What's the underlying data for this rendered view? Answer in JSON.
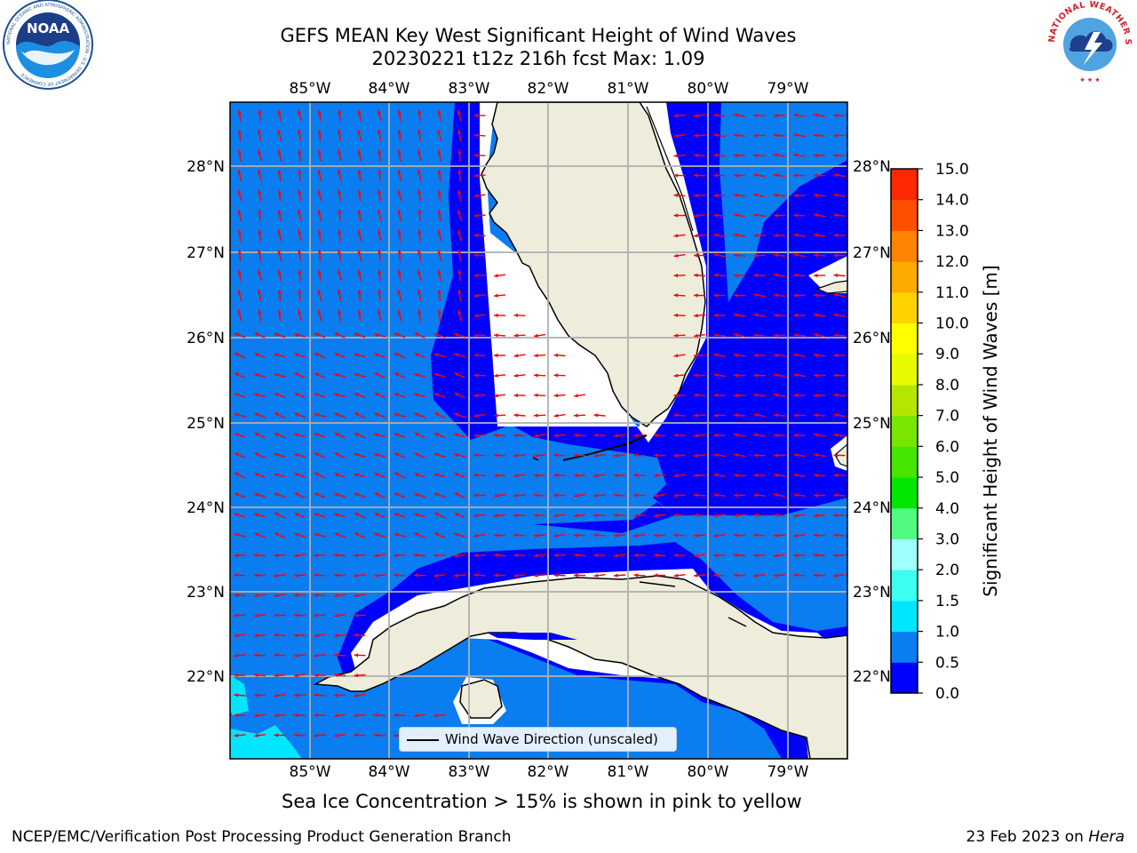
{
  "title": {
    "line1": "GEFS MEAN Key West Significant Height of Wind Waves",
    "line2": "20230221 t12z 216h fcst   Max: 1.09"
  },
  "map": {
    "lon_labels": [
      "85°W",
      "84°W",
      "83°W",
      "82°W",
      "81°W",
      "80°W",
      "79°W"
    ],
    "lat_labels": [
      "28°N",
      "27°N",
      "26°N",
      "25°N",
      "24°N",
      "23°N",
      "22°N"
    ],
    "legend_label": "Wind Wave Direction (unscaled)",
    "wind_vectors": [
      {
        "region": "west Gulf, north",
        "direction_to": "north-northwest"
      },
      {
        "region": "west Gulf, south",
        "direction_to": "west-northwest"
      },
      {
        "region": "Florida Straits",
        "direction_to": "west"
      },
      {
        "region": "Atlantic",
        "direction_to": "west"
      }
    ],
    "colors": {
      "land": "#eeeddc",
      "coast": "#000000",
      "grid": "#b0b0b0",
      "arrow": "#ff0000"
    }
  },
  "colorbar": {
    "label": "Significant Height of Wind Waves [m]",
    "ticks": [
      "0.0",
      "0.5",
      "1.0",
      "1.5",
      "2.0",
      "3.0",
      "4.0",
      "5.0",
      "6.0",
      "7.0",
      "8.0",
      "9.0",
      "10.0",
      "11.0",
      "12.0",
      "13.0",
      "14.0",
      "15.0"
    ],
    "colors": [
      "#0000ff",
      "#0a7df0",
      "#00e6ff",
      "#3cfff0",
      "#a0ffff",
      "#50fa82",
      "#00e600",
      "#46e600",
      "#78e600",
      "#b4e600",
      "#e6fa00",
      "#ffff00",
      "#ffd200",
      "#ffaa00",
      "#ff8200",
      "#ff5000",
      "#ff2800",
      "#ff0000"
    ]
  },
  "footer": {
    "subtitle": "Sea Ice Concentration > 15% is shown in pink to yellow",
    "credit": "NCEP/EMC/Verification Post Processing Product Generation Branch",
    "date_prefix": "23 Feb 2023 on ",
    "host": "Hera"
  },
  "logos": {
    "noaa": {
      "text": "NOAA",
      "ring": "NATIONAL OCEANIC AND ATMOSPHERIC ADMINISTRATION · U.S. DEPARTMENT OF COMMERCE"
    },
    "nws": {
      "ring_top": "NATIONAL WEATHER SERVICE"
    }
  }
}
